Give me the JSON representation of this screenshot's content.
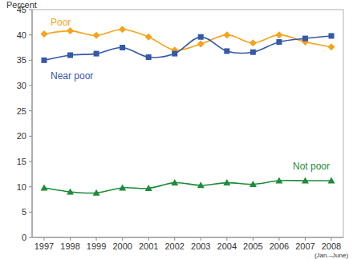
{
  "chart_data": {
    "type": "line",
    "y_label": "Percent",
    "categories": [
      "1997",
      "1998",
      "1999",
      "2000",
      "2001",
      "2002",
      "2003",
      "2004",
      "2005",
      "2006",
      "2007",
      "2008 (Jan.–June)"
    ],
    "series": [
      {
        "name": "Poor",
        "color": "#f5a21c",
        "marker": "diamond",
        "values": [
          40.2,
          40.8,
          39.9,
          41.1,
          39.6,
          37.0,
          38.2,
          40.0,
          38.4,
          40.0,
          38.6,
          37.6
        ]
      },
      {
        "name": "Near poor",
        "color": "#3558a8",
        "marker": "square",
        "values": [
          35.0,
          36.0,
          36.3,
          37.5,
          35.6,
          36.3,
          39.6,
          36.8,
          36.6,
          38.6,
          39.3,
          39.8
        ]
      },
      {
        "name": "Not poor",
        "color": "#1e8c3a",
        "marker": "triangle",
        "values": [
          9.8,
          9.0,
          8.8,
          9.8,
          9.7,
          10.8,
          10.3,
          10.8,
          10.5,
          11.2,
          11.2,
          11.2
        ]
      }
    ],
    "ylim": [
      0,
      45
    ],
    "yticks": [
      0,
      5,
      10,
      15,
      20,
      25,
      30,
      35,
      40,
      45
    ],
    "grid": false
  }
}
